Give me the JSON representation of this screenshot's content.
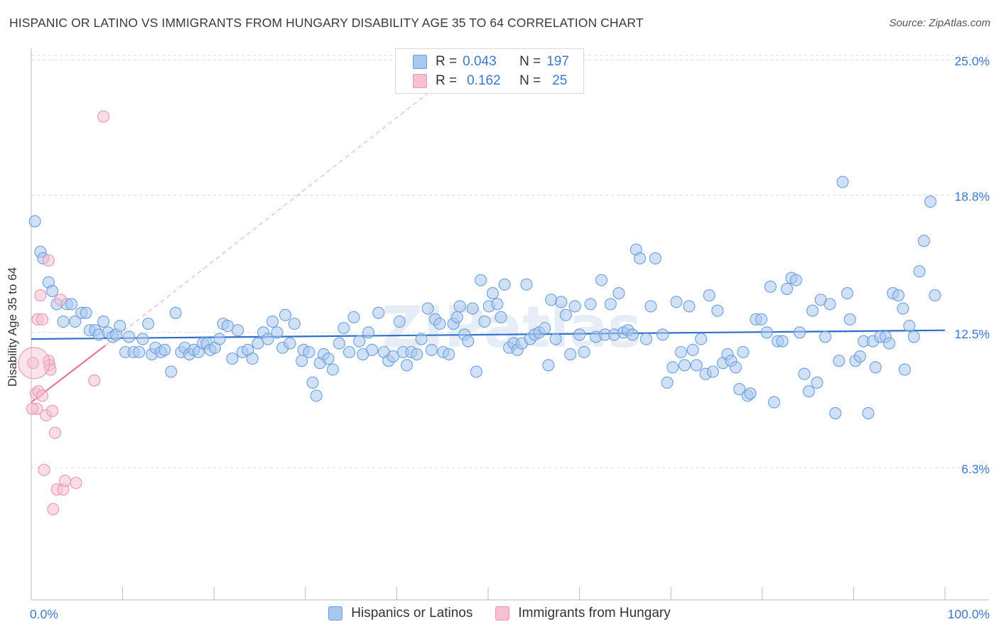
{
  "title": "HISPANIC OR LATINO VS IMMIGRANTS FROM HUNGARY DISABILITY AGE 35 TO 64 CORRELATION CHART",
  "source": "Source: ZipAtlas.com",
  "watermark": "ZIPatlas",
  "legend_top": {
    "rows": [
      {
        "r_label": "R =",
        "r_value": "0.043",
        "n_label": "N =",
        "n_value": "197",
        "color": "#a9c8f0"
      },
      {
        "r_label": "R =",
        "r_value": "0.162",
        "n_label": "N =",
        "n_value": "25",
        "color": "#f5b8cb"
      }
    ]
  },
  "colors": {
    "blue_fill": "#a9c8f0",
    "blue_stroke": "#6b9edb",
    "blue_line": "#2f6fce",
    "pink_fill": "#f7c0d1",
    "pink_stroke": "#e796b0",
    "pink_line": "#e8739a",
    "axis_text": "#3f78c9",
    "grid": "#dcdcdc"
  },
  "chart_data": {
    "type": "scatter",
    "title": "HISPANIC OR LATINO VS IMMIGRANTS FROM HUNGARY DISABILITY AGE 35 TO 64 CORRELATION CHART",
    "xlabel": "",
    "ylabel": "Disability Age 35 to 64",
    "xlim": [
      0,
      100
    ],
    "ylim": [
      0,
      26
    ],
    "x_tick_labels": [
      "0.0%",
      "100.0%"
    ],
    "y_ticks": [
      6.3,
      12.5,
      18.8,
      25.0
    ],
    "y_tick_labels": [
      "6.3%",
      "12.5%",
      "18.8%",
      "25.0%"
    ],
    "grid": true,
    "legend_position": "bottom",
    "series": [
      {
        "name": "Hispanics or Latinos",
        "color": "#a9c8f0",
        "trend": {
          "x": [
            0,
            100
          ],
          "y": [
            12.2,
            12.6
          ]
        },
        "points": [
          [
            0.4,
            17.6
          ],
          [
            1.0,
            16.2
          ],
          [
            1.3,
            15.9
          ],
          [
            1.9,
            14.8
          ],
          [
            2.3,
            14.4
          ],
          [
            2.8,
            13.8
          ],
          [
            3.5,
            13.0
          ],
          [
            3.9,
            13.8
          ],
          [
            4.4,
            13.8
          ],
          [
            4.8,
            13.0
          ],
          [
            5.5,
            13.4
          ],
          [
            6.0,
            13.4
          ],
          [
            6.4,
            12.6
          ],
          [
            7.0,
            12.6
          ],
          [
            7.4,
            12.4
          ],
          [
            7.9,
            13.0
          ],
          [
            8.4,
            12.5
          ],
          [
            8.9,
            12.3
          ],
          [
            9.3,
            12.4
          ],
          [
            9.7,
            12.8
          ],
          [
            10.3,
            11.6
          ],
          [
            10.7,
            12.3
          ],
          [
            11.2,
            11.6
          ],
          [
            11.8,
            11.6
          ],
          [
            12.2,
            12.2
          ],
          [
            12.8,
            12.9
          ],
          [
            13.2,
            11.5
          ],
          [
            13.6,
            11.8
          ],
          [
            14.2,
            11.6
          ],
          [
            14.6,
            11.7
          ],
          [
            15.3,
            10.7
          ],
          [
            15.8,
            13.4
          ],
          [
            16.4,
            11.6
          ],
          [
            16.8,
            11.8
          ],
          [
            17.3,
            11.5
          ],
          [
            17.8,
            11.7
          ],
          [
            18.3,
            11.6
          ],
          [
            18.8,
            12.0
          ],
          [
            19.2,
            12.0
          ],
          [
            19.6,
            11.7
          ],
          [
            20.1,
            11.8
          ],
          [
            20.6,
            12.2
          ],
          [
            21.0,
            12.9
          ],
          [
            21.5,
            12.8
          ],
          [
            22.0,
            11.3
          ],
          [
            22.6,
            12.6
          ],
          [
            23.1,
            11.6
          ],
          [
            23.7,
            11.7
          ],
          [
            24.2,
            11.3
          ],
          [
            24.8,
            12.0
          ],
          [
            25.4,
            12.5
          ],
          [
            25.9,
            12.2
          ],
          [
            26.4,
            13.0
          ],
          [
            26.9,
            12.5
          ],
          [
            27.5,
            11.8
          ],
          [
            27.8,
            13.3
          ],
          [
            28.3,
            12.0
          ],
          [
            28.8,
            12.9
          ],
          [
            29.6,
            11.2
          ],
          [
            29.8,
            11.7
          ],
          [
            30.4,
            11.6
          ],
          [
            30.8,
            10.2
          ],
          [
            31.2,
            9.6
          ],
          [
            31.6,
            11.1
          ],
          [
            32.0,
            11.5
          ],
          [
            32.5,
            11.3
          ],
          [
            33.0,
            10.8
          ],
          [
            33.7,
            12.0
          ],
          [
            34.2,
            12.7
          ],
          [
            34.8,
            11.6
          ],
          [
            35.3,
            13.2
          ],
          [
            35.9,
            12.1
          ],
          [
            36.3,
            11.5
          ],
          [
            36.9,
            12.5
          ],
          [
            37.3,
            11.7
          ],
          [
            38.0,
            13.4
          ],
          [
            38.6,
            11.6
          ],
          [
            39.1,
            11.2
          ],
          [
            39.6,
            11.4
          ],
          [
            40.3,
            13.0
          ],
          [
            40.7,
            11.6
          ],
          [
            41.1,
            11.0
          ],
          [
            41.6,
            11.6
          ],
          [
            42.2,
            11.5
          ],
          [
            42.7,
            12.2
          ],
          [
            43.4,
            13.6
          ],
          [
            43.8,
            11.7
          ],
          [
            44.2,
            13.1
          ],
          [
            44.7,
            12.9
          ],
          [
            45.1,
            11.6
          ],
          [
            45.7,
            11.5
          ],
          [
            46.2,
            12.9
          ],
          [
            46.6,
            13.2
          ],
          [
            46.9,
            13.7
          ],
          [
            47.4,
            12.4
          ],
          [
            47.8,
            12.1
          ],
          [
            48.3,
            13.6
          ],
          [
            48.7,
            10.7
          ],
          [
            49.2,
            14.9
          ],
          [
            49.6,
            13.0
          ],
          [
            50.1,
            13.7
          ],
          [
            50.5,
            14.3
          ],
          [
            51.0,
            13.8
          ],
          [
            51.4,
            13.2
          ],
          [
            51.8,
            14.7
          ],
          [
            52.3,
            11.8
          ],
          [
            52.8,
            12.0
          ],
          [
            53.2,
            11.7
          ],
          [
            53.7,
            12.0
          ],
          [
            54.2,
            14.7
          ],
          [
            54.6,
            12.2
          ],
          [
            55.1,
            12.4
          ],
          [
            55.6,
            12.5
          ],
          [
            56.2,
            12.7
          ],
          [
            56.6,
            11.0
          ],
          [
            56.9,
            14.0
          ],
          [
            57.4,
            12.2
          ],
          [
            58.0,
            13.9
          ],
          [
            58.5,
            13.3
          ],
          [
            59.0,
            11.5
          ],
          [
            59.5,
            13.7
          ],
          [
            60.0,
            12.4
          ],
          [
            60.5,
            11.6
          ],
          [
            61.2,
            13.8
          ],
          [
            61.8,
            12.3
          ],
          [
            62.4,
            14.9
          ],
          [
            62.8,
            12.4
          ],
          [
            63.4,
            13.8
          ],
          [
            63.8,
            12.4
          ],
          [
            64.3,
            14.3
          ],
          [
            64.8,
            12.5
          ],
          [
            65.3,
            12.6
          ],
          [
            65.8,
            12.4
          ],
          [
            66.2,
            16.3
          ],
          [
            66.6,
            15.9
          ],
          [
            67.3,
            12.2
          ],
          [
            67.8,
            13.7
          ],
          [
            68.3,
            15.9
          ],
          [
            69.1,
            12.4
          ],
          [
            69.6,
            10.2
          ],
          [
            70.2,
            10.9
          ],
          [
            70.6,
            13.9
          ],
          [
            71.1,
            11.6
          ],
          [
            71.5,
            11.0
          ],
          [
            72.0,
            13.7
          ],
          [
            72.4,
            11.7
          ],
          [
            72.8,
            11.0
          ],
          [
            73.3,
            12.2
          ],
          [
            73.8,
            10.6
          ],
          [
            74.2,
            14.2
          ],
          [
            74.6,
            10.7
          ],
          [
            75.1,
            13.5
          ],
          [
            75.7,
            11.1
          ],
          [
            76.2,
            11.5
          ],
          [
            76.6,
            11.2
          ],
          [
            77.1,
            10.9
          ],
          [
            77.5,
            9.9
          ],
          [
            77.9,
            11.6
          ],
          [
            78.4,
            9.6
          ],
          [
            78.7,
            9.7
          ],
          [
            79.3,
            13.1
          ],
          [
            79.9,
            13.1
          ],
          [
            80.5,
            12.5
          ],
          [
            80.9,
            14.6
          ],
          [
            81.3,
            9.3
          ],
          [
            81.7,
            12.1
          ],
          [
            82.2,
            12.1
          ],
          [
            82.7,
            14.5
          ],
          [
            83.2,
            15.0
          ],
          [
            83.7,
            14.9
          ],
          [
            84.1,
            12.5
          ],
          [
            84.6,
            10.6
          ],
          [
            85.1,
            9.8
          ],
          [
            85.5,
            13.5
          ],
          [
            86.0,
            10.2
          ],
          [
            86.4,
            14.0
          ],
          [
            86.9,
            12.3
          ],
          [
            87.4,
            13.8
          ],
          [
            88.0,
            8.8
          ],
          [
            88.4,
            11.2
          ],
          [
            88.8,
            19.4
          ],
          [
            89.3,
            14.3
          ],
          [
            89.6,
            13.1
          ],
          [
            90.2,
            11.2
          ],
          [
            90.7,
            11.4
          ],
          [
            91.1,
            12.1
          ],
          [
            91.6,
            8.8
          ],
          [
            92.1,
            12.1
          ],
          [
            92.4,
            10.9
          ],
          [
            92.9,
            12.3
          ],
          [
            93.5,
            12.3
          ],
          [
            93.9,
            12.0
          ],
          [
            94.3,
            14.3
          ],
          [
            94.9,
            14.2
          ],
          [
            95.4,
            13.6
          ],
          [
            95.6,
            10.8
          ],
          [
            96.1,
            12.8
          ],
          [
            96.6,
            12.3
          ],
          [
            97.2,
            15.3
          ],
          [
            97.7,
            16.7
          ],
          [
            98.4,
            18.5
          ],
          [
            98.9,
            14.2
          ]
        ]
      },
      {
        "name": "Immigrants from Hungary",
        "color": "#f7c0d1",
        "trend": {
          "x": [
            0,
            8.1
          ],
          "y": [
            9.3,
            11.9
          ],
          "extended": {
            "x": [
              8.1,
              43.5
            ],
            "y": [
              11.9,
              23.5
            ]
          }
        },
        "points": [
          [
            0.2,
            11.1
          ],
          [
            0.5,
            9.7
          ],
          [
            0.6,
            9.0
          ],
          [
            0.7,
            13.1
          ],
          [
            0.8,
            9.8
          ],
          [
            1.0,
            14.2
          ],
          [
            1.2,
            13.1
          ],
          [
            1.2,
            9.6
          ],
          [
            1.4,
            6.2
          ],
          [
            1.6,
            8.7
          ],
          [
            1.9,
            15.8
          ],
          [
            1.9,
            11.2
          ],
          [
            2.0,
            11.0
          ],
          [
            2.1,
            10.8
          ],
          [
            2.3,
            8.9
          ],
          [
            2.4,
            4.4
          ],
          [
            2.6,
            7.9
          ],
          [
            2.8,
            5.3
          ],
          [
            3.2,
            14.0
          ],
          [
            3.5,
            5.3
          ],
          [
            3.7,
            5.7
          ],
          [
            4.9,
            5.6
          ],
          [
            6.9,
            10.3
          ],
          [
            7.9,
            22.4
          ],
          [
            0.1,
            9.0
          ]
        ]
      }
    ]
  },
  "bottom_legend": [
    {
      "label": "Hispanics or Latinos",
      "color": "#a9c8f0"
    },
    {
      "label": "Immigrants from Hungary",
      "color": "#f7c0d1"
    }
  ]
}
